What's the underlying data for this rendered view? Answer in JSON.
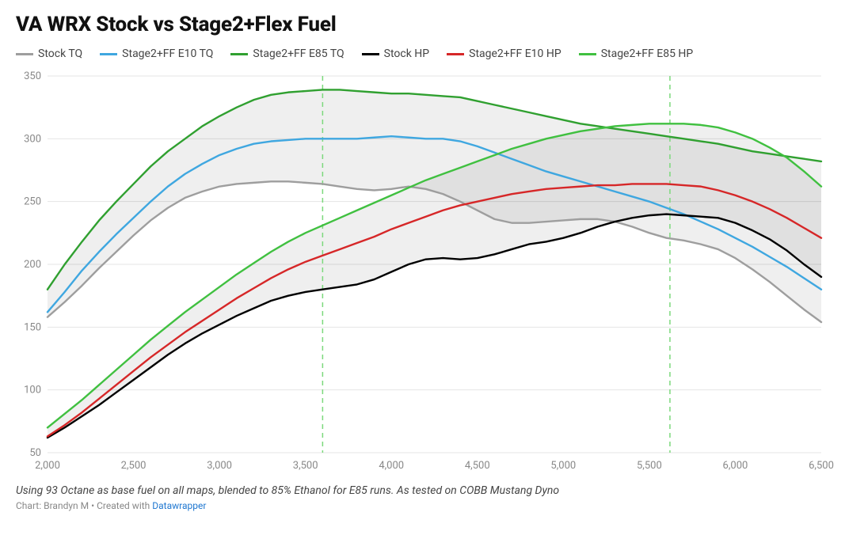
{
  "title": "VA WRX Stock vs Stage2+Flex Fuel",
  "subtitle": "Using 93 Octane as base fuel on all maps, blended to 85% Ethanol for E85 runs. As tested on COBB Mustang Dyno",
  "credit_prefix": "Chart: Brandyn M • Created with ",
  "credit_link_text": "Datawrapper",
  "chart": {
    "type": "line",
    "background_color": "#ffffff",
    "grid_color": "#e4e4e4",
    "axis_text_color": "#888888",
    "axis_fontsize": 13,
    "xlim": [
      2000,
      6500
    ],
    "ylim": [
      50,
      350
    ],
    "xtick_step": 500,
    "ytick_step": 50,
    "xticks": [
      "2,000",
      "2,500",
      "3,000",
      "3,500",
      "4,000",
      "4,500",
      "5,000",
      "5,500",
      "6,000",
      "6,500"
    ],
    "yticks": [
      "50",
      "100",
      "150",
      "200",
      "250",
      "300",
      "350"
    ],
    "marker_lines": {
      "color": "#7cd97c",
      "dash": "6,5",
      "width": 1.5,
      "x": [
        3600,
        5620
      ]
    },
    "area_fill": "#00000010",
    "line_width": 2.4,
    "x": [
      2000,
      2100,
      2200,
      2300,
      2400,
      2500,
      2600,
      2700,
      2800,
      2900,
      3000,
      3100,
      3200,
      3300,
      3400,
      3500,
      3600,
      3700,
      3800,
      3900,
      4000,
      4100,
      4200,
      4300,
      4400,
      4500,
      4600,
      4700,
      4800,
      4900,
      5000,
      5100,
      5200,
      5300,
      5400,
      5500,
      5600,
      5700,
      5800,
      5900,
      6000,
      6100,
      6200,
      6300,
      6400,
      6500
    ],
    "series": [
      {
        "id": "stock_tq",
        "label": "Stock TQ",
        "color": "#9e9e9e",
        "y": [
          158,
          170,
          183,
          197,
          210,
          223,
          235,
          245,
          253,
          258,
          262,
          264,
          265,
          266,
          266,
          265,
          264,
          262,
          260,
          259,
          260,
          262,
          260,
          256,
          250,
          243,
          236,
          233,
          233,
          234,
          235,
          236,
          236,
          234,
          230,
          225,
          221,
          219,
          216,
          212,
          205,
          196,
          186,
          175,
          164,
          154
        ]
      },
      {
        "id": "s2_e10_tq",
        "label": "Stage2+FF E10 TQ",
        "color": "#3fa7e0",
        "y": [
          162,
          178,
          195,
          210,
          224,
          237,
          250,
          262,
          272,
          280,
          287,
          292,
          296,
          298,
          299,
          300,
          300,
          300,
          300,
          301,
          302,
          301,
          300,
          300,
          298,
          294,
          289,
          284,
          279,
          274,
          270,
          266,
          262,
          258,
          254,
          250,
          245,
          240,
          234,
          228,
          221,
          214,
          206,
          198,
          189,
          180
        ]
      },
      {
        "id": "s2_e85_tq",
        "label": "Stage2+FF E85 TQ",
        "color": "#30a030",
        "y": [
          180,
          200,
          218,
          235,
          250,
          264,
          278,
          290,
          300,
          310,
          318,
          325,
          331,
          335,
          337,
          338,
          339,
          339,
          338,
          337,
          336,
          336,
          335,
          334,
          333,
          330,
          327,
          324,
          321,
          318,
          315,
          312,
          310,
          308,
          306,
          304,
          302,
          300,
          298,
          296,
          293,
          290,
          288,
          286,
          284,
          282
        ]
      },
      {
        "id": "stock_hp",
        "label": "Stock HP",
        "color": "#000000",
        "y": [
          62,
          70,
          79,
          88,
          98,
          108,
          118,
          128,
          137,
          145,
          152,
          159,
          165,
          171,
          175,
          178,
          180,
          182,
          184,
          188,
          194,
          200,
          204,
          205,
          204,
          205,
          208,
          212,
          216,
          218,
          221,
          225,
          230,
          234,
          237,
          239,
          240,
          239,
          238,
          237,
          233,
          227,
          220,
          211,
          200,
          190
        ]
      },
      {
        "id": "s2_e10_hp",
        "label": "Stage2+FF E10 HP",
        "color": "#d62728",
        "y": [
          63,
          72,
          82,
          93,
          104,
          115,
          126,
          136,
          146,
          155,
          164,
          173,
          181,
          189,
          196,
          202,
          207,
          212,
          217,
          222,
          228,
          233,
          238,
          243,
          247,
          250,
          253,
          256,
          258,
          260,
          261,
          262,
          263,
          263,
          264,
          264,
          264,
          263,
          262,
          259,
          255,
          250,
          244,
          237,
          229,
          221
        ]
      },
      {
        "id": "s2_e85_hp",
        "label": "Stage2+FF E85 HP",
        "color": "#40c040",
        "y": [
          70,
          81,
          92,
          104,
          116,
          128,
          140,
          151,
          162,
          172,
          182,
          192,
          201,
          210,
          218,
          225,
          231,
          237,
          243,
          249,
          255,
          261,
          267,
          272,
          277,
          282,
          287,
          292,
          296,
          300,
          303,
          306,
          308,
          310,
          311,
          312,
          312,
          312,
          311,
          309,
          305,
          300,
          293,
          285,
          274,
          262
        ]
      }
    ],
    "areas": [
      {
        "upper": "s2_e85_tq",
        "lower": "stock_tq"
      },
      {
        "upper": "s2_e85_hp",
        "lower": "stock_hp"
      }
    ]
  }
}
